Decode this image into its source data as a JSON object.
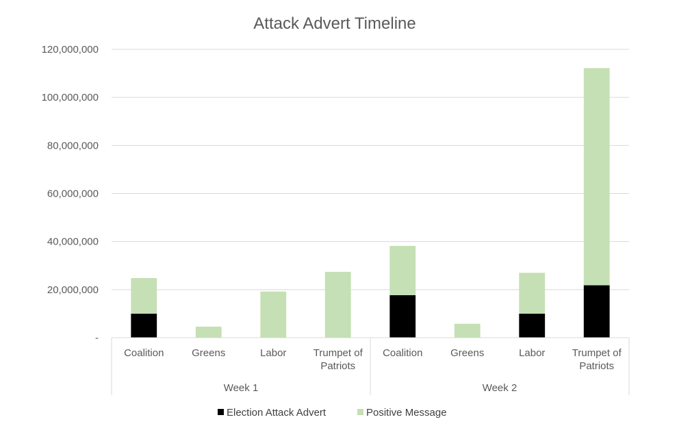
{
  "chart_data": {
    "type": "bar",
    "stacked": true,
    "title": "Attack Advert Timeline",
    "xlabel": "",
    "ylabel": "",
    "ylim": [
      0,
      120000000
    ],
    "yticks": [
      0,
      20000000,
      40000000,
      60000000,
      80000000,
      100000000,
      120000000
    ],
    "ytick_labels": [
      "-",
      "20,000,000",
      "40,000,000",
      "60,000,000",
      "80,000,000",
      "100,000,000",
      "120,000,000"
    ],
    "groups": [
      {
        "label": "Week 1",
        "categories": [
          "Coalition",
          "Greens",
          "Labor",
          "Trumpet of Patriots"
        ]
      },
      {
        "label": "Week 2",
        "categories": [
          "Coalition",
          "Greens",
          "Labor",
          "Trumpet of Patriots"
        ]
      }
    ],
    "series": [
      {
        "name": "Election Attack Advert",
        "color": "#000000",
        "values": [
          10000000,
          0,
          0,
          0,
          17700000,
          0,
          10000000,
          21800000
        ]
      },
      {
        "name": "Positive Message",
        "color": "#c5e0b4",
        "values": [
          14800000,
          4600000,
          19200000,
          27400000,
          20500000,
          5800000,
          17000000,
          90400000
        ]
      }
    ],
    "grid": true,
    "legend_position": "bottom"
  }
}
